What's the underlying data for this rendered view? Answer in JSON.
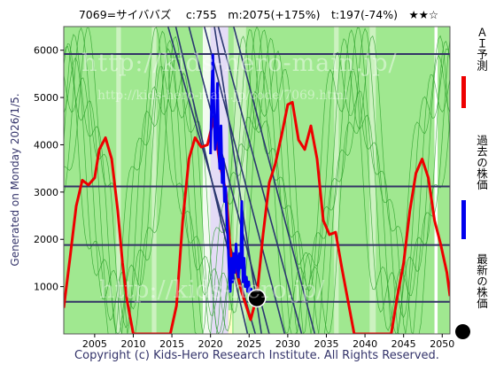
{
  "header": {
    "title": "7069=サイババズ　 c:755　m:2075(+175%)　t:197(-74%)　★★☆"
  },
  "side_label": "Generated on Monday 2026/1/5.",
  "copyright": "Copyright (c) Kids-Hero Research Institute. All Rights Reserved.",
  "watermark": {
    "main": "http://kids-hero-main.jp/",
    "sub": "http://kids-hero-main.jp/code/7069.html",
    "bottom": "http://kids-hero.jp/"
  },
  "legend": {
    "ai_forecast": "ＡＩ予測",
    "past_price": "過去の株価",
    "latest_price": "最新の株価"
  },
  "colors": {
    "ai_forecast": "#ee0000",
    "past_price": "#0000ee",
    "latest_price": "#000000",
    "band_green": "#a0e890",
    "band_light": "#ccf2c0",
    "grid": "#333366",
    "trend": "#2a3870",
    "osc": "#229922"
  },
  "chart_data": {
    "type": "line",
    "title": "7069=サイババズ",
    "xlabel": "",
    "ylabel": "",
    "xlim": [
      2001,
      2051
    ],
    "ylim": [
      0,
      6500
    ],
    "xticks": [
      2005,
      2010,
      2015,
      2020,
      2025,
      2030,
      2035,
      2040,
      2045,
      2050
    ],
    "yticks": [
      1000,
      2000,
      3000,
      4000,
      5000,
      6000
    ],
    "hlines": [
      680,
      1880,
      3120,
      5920
    ],
    "latest": {
      "x": 2026.0,
      "y": 755
    },
    "series": [
      {
        "name": "ＡＩ予測",
        "x": [
          2001.0,
          2001.8,
          2002.6,
          2003.4,
          2004.2,
          2005.0,
          2005.6,
          2006.4,
          2007.2,
          2008.0,
          2008.6,
          2009.2,
          2010.0,
          2011.0,
          2012.0,
          2013.0,
          2013.8,
          2014.8,
          2015.6,
          2016.4,
          2017.2,
          2018.0,
          2018.8,
          2019.6,
          2020.4,
          2021.2,
          2022.0,
          2022.6,
          2023.4,
          2024.0,
          2024.6,
          2025.2,
          2026.0,
          2026.8,
          2027.6,
          2028.4,
          2029.2,
          2030.0,
          2030.6,
          2031.4,
          2032.2,
          2033.0,
          2033.8,
          2034.6,
          2035.4,
          2036.2,
          2037.0,
          2037.8,
          2038.6,
          2039.4,
          2040.2,
          2041.0,
          2041.8,
          2042.6,
          2043.4,
          2044.2,
          2045.0,
          2045.8,
          2046.6,
          2047.4,
          2048.2,
          2049.0,
          2049.8,
          2050.6,
          2051.0
        ],
        "y": [
          550,
          1600,
          2700,
          3250,
          3150,
          3300,
          3900,
          4150,
          3700,
          2600,
          1500,
          700,
          0,
          0,
          0,
          0,
          0,
          0,
          600,
          2400,
          3700,
          4150,
          3950,
          4000,
          4550,
          3600,
          3000,
          1700,
          1300,
          900,
          600,
          300,
          800,
          2100,
          3200,
          3600,
          4200,
          4850,
          4900,
          4100,
          3900,
          4400,
          3700,
          2400,
          2100,
          2150,
          1400,
          700,
          0,
          0,
          0,
          0,
          0,
          0,
          0,
          800,
          1500,
          2600,
          3400,
          3700,
          3300,
          2400,
          1900,
          1300,
          800
        ]
      },
      {
        "name": "過去の株価",
        "x": [
          2020.0,
          2020.15,
          2020.3,
          2020.45,
          2020.6,
          2020.75,
          2020.9,
          2021.05,
          2021.2,
          2021.35,
          2021.5,
          2021.65,
          2021.8,
          2021.95,
          2022.1,
          2022.25,
          2022.4,
          2022.55,
          2022.7,
          2022.85,
          2023.0,
          2023.15,
          2023.3,
          2023.45,
          2023.6,
          2023.75,
          2023.9,
          2024.05,
          2024.2,
          2024.35,
          2024.5,
          2024.65,
          2024.8,
          2024.95,
          2025.1,
          2025.25,
          2025.4,
          2025.55,
          2025.7,
          2025.85,
          2026.0
        ],
        "y": [
          3800,
          5000,
          5900,
          4700,
          3900,
          4200,
          5300,
          4000,
          3500,
          4400,
          3200,
          3700,
          2800,
          3100,
          2500,
          2000,
          1400,
          900,
          1600,
          1100,
          1700,
          1300,
          1900,
          1500,
          1200,
          1700,
          1400,
          2800,
          1100,
          1600,
          1000,
          1200,
          900,
          1100,
          800,
          950,
          700,
          850,
          780,
          760,
          755
        ]
      }
    ]
  }
}
